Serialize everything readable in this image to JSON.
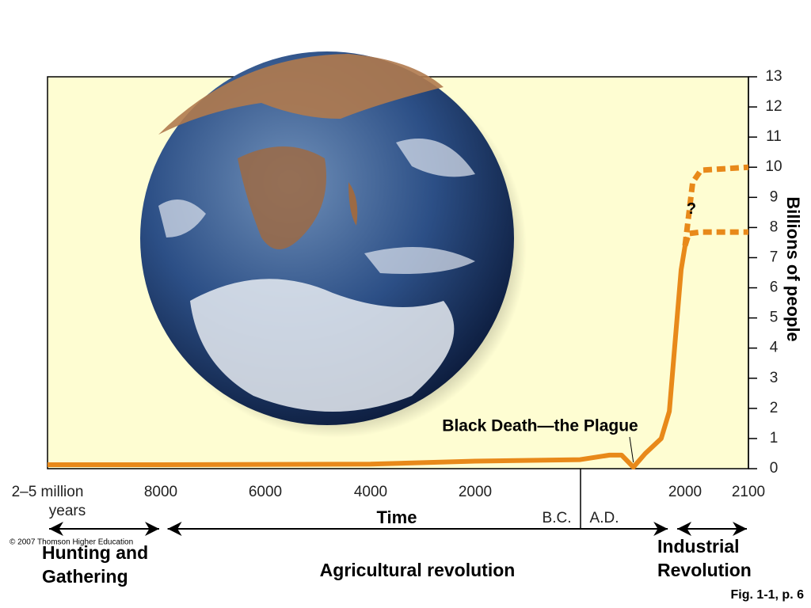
{
  "chart_data": {
    "type": "line",
    "y_label": "Billions of people",
    "x_label": "Time",
    "x_start_label": "2–5 million years",
    "era_labels": [
      "B.C.",
      "A.D."
    ],
    "xlim": [
      -10200,
      2100
    ],
    "xticks": [
      {
        "value": -8000,
        "label": "8000"
      },
      {
        "value": -6000,
        "label": "6000"
      },
      {
        "value": -4000,
        "label": "4000"
      },
      {
        "value": -2000,
        "label": "2000"
      },
      2000,
      2100
    ],
    "ylim": [
      0,
      13
    ],
    "yticks": [
      0,
      1,
      2,
      3,
      4,
      5,
      6,
      7,
      8,
      9,
      10,
      11,
      12,
      13
    ],
    "series": [
      {
        "color": "#e8891a",
        "style": "solid",
        "x": [
          -10200,
          -8000,
          -4000,
          -2000,
          0,
          560,
          790,
          1015,
          1240,
          1545,
          1700,
          1800,
          1925,
          2000
        ],
        "values": [
          0.13,
          0.13,
          0.15,
          0.25,
          0.3,
          0.45,
          0.45,
          0.05,
          0.5,
          1.0,
          1.9,
          4.0,
          6.6,
          7.4
        ]
      },
      {
        "color": "#e8891a",
        "style": "dashed",
        "x": [
          2000,
          2012,
          2025,
          2100
        ],
        "values": [
          7.4,
          9.5,
          9.9,
          10
        ]
      },
      {
        "color": "#e8891a",
        "style": "dashed",
        "x": [
          2000,
          2006,
          2025,
          2100
        ],
        "values": [
          7.4,
          7.8,
          7.85,
          7.85
        ]
      }
    ],
    "annotations": [
      {
        "text": "Black Death—the Plague",
        "x": 1015,
        "y": 0.05
      },
      {
        "text": "?",
        "x": 2010,
        "y": 8.6
      }
    ],
    "periods": [
      {
        "label": [
          "Hunting and",
          "Gathering"
        ],
        "from": -10200,
        "to": -8000
      },
      {
        "label": [
          "Agricultural revolution"
        ],
        "from": -7900,
        "to": 1700
      },
      {
        "label": [
          "Industrial",
          "Revolution"
        ],
        "from": 1820,
        "to": 2100
      }
    ],
    "copyright": "© 2007 Thomson Higher Education",
    "figure_ref": "Fig. 1-1, p. 6"
  }
}
